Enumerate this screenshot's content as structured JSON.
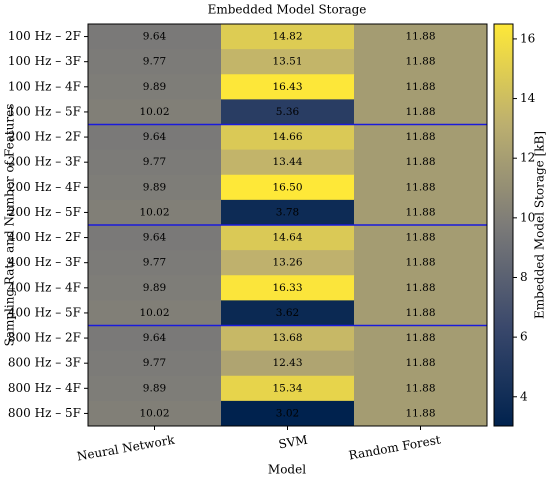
{
  "chart_data": {
    "type": "heatmap",
    "title": "Embedded Model Storage",
    "xlabel": "Model",
    "ylabel": "Sampling Rate and Number of Features",
    "colorbar_label": "Embedded Model Storage [kB]",
    "colormap": "cividis",
    "columns": [
      "Neural Network",
      "SVM",
      "Random Forest"
    ],
    "rows": [
      "100 Hz – 2F",
      "100 Hz – 3F",
      "100 Hz – 4F",
      "100 Hz – 5F",
      "200 Hz – 2F",
      "200 Hz – 3F",
      "200 Hz – 4F",
      "200 Hz – 5F",
      "400 Hz – 2F",
      "400 Hz – 3F",
      "400 Hz – 4F",
      "400 Hz – 5F",
      "800 Hz – 2F",
      "800 Hz – 3F",
      "800 Hz – 4F",
      "800 Hz – 5F"
    ],
    "values": [
      [
        9.64,
        14.82,
        11.88
      ],
      [
        9.77,
        13.51,
        11.88
      ],
      [
        9.89,
        16.43,
        11.88
      ],
      [
        10.02,
        5.36,
        11.88
      ],
      [
        9.64,
        14.66,
        11.88
      ],
      [
        9.77,
        13.44,
        11.88
      ],
      [
        9.89,
        16.5,
        11.88
      ],
      [
        10.02,
        3.78,
        11.88
      ],
      [
        9.64,
        14.64,
        11.88
      ],
      [
        9.77,
        13.26,
        11.88
      ],
      [
        9.89,
        16.33,
        11.88
      ],
      [
        10.02,
        3.62,
        11.88
      ],
      [
        9.64,
        13.68,
        11.88
      ],
      [
        9.77,
        12.43,
        11.88
      ],
      [
        9.89,
        15.34,
        11.88
      ],
      [
        10.02,
        3.02,
        11.88
      ]
    ],
    "value_labels": [
      [
        "9.64",
        "14.82",
        "11.88"
      ],
      [
        "9.77",
        "13.51",
        "11.88"
      ],
      [
        "9.89",
        "16.43",
        "11.88"
      ],
      [
        "10.02",
        "5.36",
        "11.88"
      ],
      [
        "9.64",
        "14.66",
        "11.88"
      ],
      [
        "9.77",
        "13.44",
        "11.88"
      ],
      [
        "9.89",
        "16.50",
        "11.88"
      ],
      [
        "10.02",
        "3.78",
        "11.88"
      ],
      [
        "9.64",
        "14.64",
        "11.88"
      ],
      [
        "9.77",
        "13.26",
        "11.88"
      ],
      [
        "9.89",
        "16.33",
        "11.88"
      ],
      [
        "10.02",
        "3.62",
        "11.88"
      ],
      [
        "9.64",
        "13.68",
        "11.88"
      ],
      [
        "9.77",
        "12.43",
        "11.88"
      ],
      [
        "9.89",
        "15.34",
        "11.88"
      ],
      [
        "10.02",
        "3.02",
        "11.88"
      ]
    ],
    "clim": [
      3.02,
      16.5
    ],
    "cticks": [
      4,
      6,
      8,
      10,
      12,
      14,
      16
    ]
  }
}
